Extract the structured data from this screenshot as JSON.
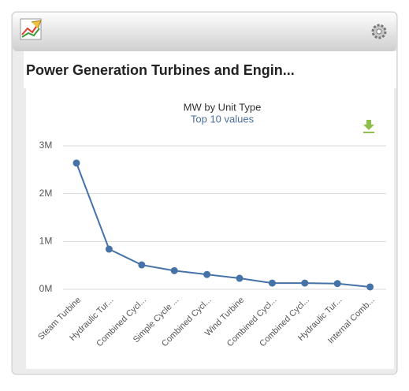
{
  "header": {
    "title": "Power Generation Turbines and Engin..."
  },
  "chart_data": {
    "type": "line",
    "title": "MW by Unit Type",
    "subtitle": "Top 10 values",
    "categories": [
      "Steam Turbine",
      "Hydraulic Tur...",
      "Combined Cycl...",
      "Simple Cycle ...",
      "Combined Cycl...",
      "Wind Turbine",
      "Combined Cycl...",
      "Combined Cycl...",
      "Hydraulic Tur...",
      "Internal Comb..."
    ],
    "series": [
      {
        "name": "MW",
        "color": "#4572a7",
        "values": [
          2640000,
          840000,
          510000,
          390000,
          310000,
          230000,
          130000,
          130000,
          120000,
          50000
        ]
      }
    ],
    "ylim": [
      0,
      3000000
    ],
    "yticks": [
      {
        "value": 0,
        "label": "0M"
      },
      {
        "value": 1000000,
        "label": "1M"
      },
      {
        "value": 2000000,
        "label": "2M"
      },
      {
        "value": 3000000,
        "label": "3M"
      }
    ],
    "grid": true
  }
}
